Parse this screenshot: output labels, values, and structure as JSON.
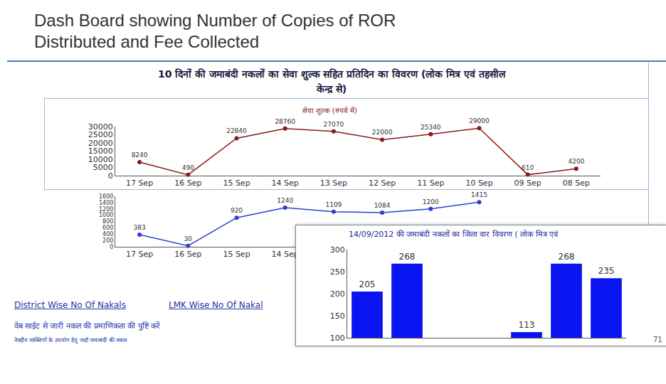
{
  "title": [
    "Dash Board showing Number of Copies of ROR",
    "Distributed and Fee Collected"
  ],
  "header": [
    "10 दिनों की जमाबंदी नकलों का सेवा शुल्क सहित प्रतिदिन का विवरण (लोक मित्र एवं तहसील",
    "केन्द्र से)"
  ],
  "chart_data": [
    {
      "type": "line",
      "title": "सेवा शुल्क (रुपये में)",
      "categories": [
        "17 Sep",
        "16 Sep",
        "15 Sep",
        "14 Sep",
        "13 Sep",
        "12 Sep",
        "11 Sep",
        "10 Sep",
        "09 Sep",
        "08 Sep"
      ],
      "values": [
        8240,
        490,
        22840,
        28760,
        27070,
        22000,
        25340,
        29000,
        610,
        4200
      ],
      "color": "#8b1a1a",
      "marker": "circle",
      "data_labels": true,
      "ylim": [
        0,
        30000
      ],
      "yticks": [
        0,
        5000,
        10000,
        15000,
        20000,
        25000,
        30000
      ],
      "grid": false
    },
    {
      "type": "line",
      "categories": [
        "17 Sep",
        "16 Sep",
        "15 Sep",
        "14 Sep",
        null,
        null,
        null,
        null,
        null,
        null
      ],
      "values": [
        383,
        30,
        920,
        1240,
        1109,
        1084,
        1200,
        1415,
        null,
        null
      ],
      "color": "#2c3ed4",
      "marker": "circle",
      "data_labels": true,
      "ylim": [
        0,
        1600
      ],
      "yticks": [
        0,
        200,
        400,
        600,
        800,
        1000,
        1200,
        1400,
        1600
      ],
      "grid": false
    },
    {
      "type": "bar",
      "title": "14/09/2012 की जमाबंदी नकलों का जिला वार विवरण ( लोक मित्र एवं",
      "categories": [
        null,
        null,
        null,
        null,
        null,
        null,
        null
      ],
      "values": [
        205,
        268,
        null,
        null,
        113,
        268,
        235
      ],
      "color": "#0a14f0",
      "data_labels": true,
      "ylim": [
        100,
        300
      ],
      "yticks": [
        100,
        150,
        200,
        250,
        300
      ],
      "grid": false,
      "tick_labels": "y"
    }
  ],
  "links": [
    "District Wise No Of Nakals",
    "LMK Wise No Of Nakal"
  ],
  "notes": [
    "वेब साईट से जारी नकल की प्रमाणिकता की पुष्टि करें",
    "नेत्रहीन व्यक्तियों के उपयोग हेतु जहाँ जमाबंदी की नकल"
  ],
  "page_number": "71"
}
